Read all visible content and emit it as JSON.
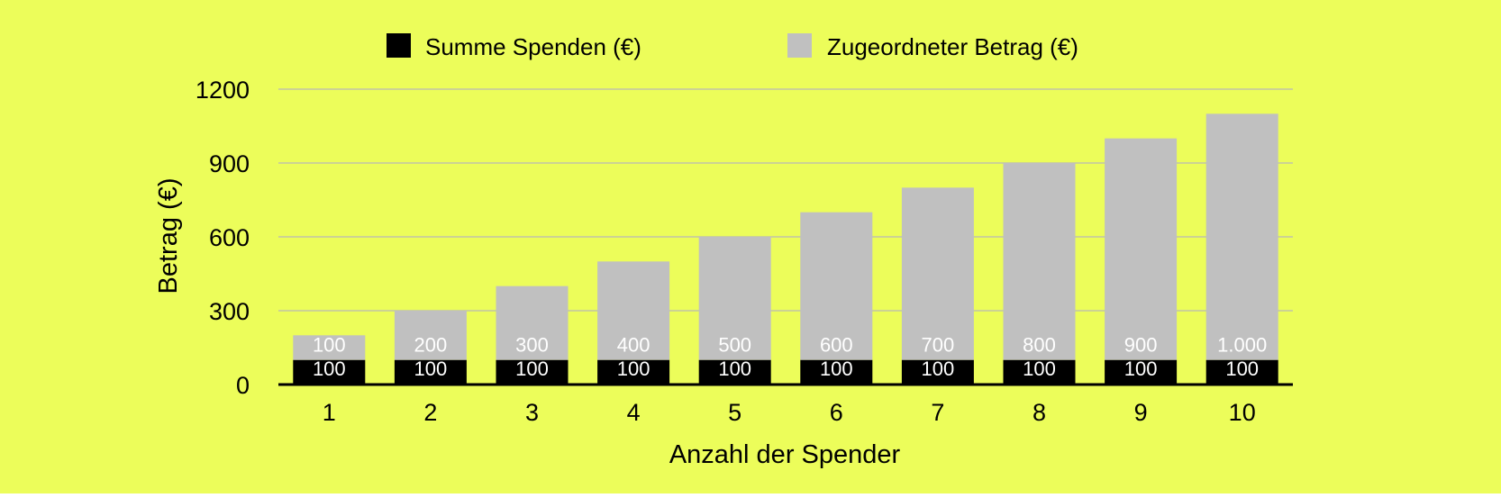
{
  "colors": {
    "background": "#ecfd5a",
    "donations": "#000000",
    "matched": "#c0c0c0",
    "grid": "#b8b8b8",
    "axis": "#000000",
    "bar_label": "#ffffff",
    "text": "#000000"
  },
  "chart_data": {
    "type": "bar",
    "stacked": true,
    "title": "",
    "xlabel": "Anzahl der Spender",
    "ylabel": "Betrag (€)",
    "ylim": [
      0,
      1200
    ],
    "yticks": [
      0,
      300,
      600,
      900,
      1200
    ],
    "ytick_labels": [
      "0",
      "300",
      "600",
      "900",
      "1200"
    ],
    "grid": true,
    "legend_position": "top-center",
    "categories": [
      "1",
      "2",
      "3",
      "4",
      "5",
      "6",
      "7",
      "8",
      "9",
      "10"
    ],
    "series": [
      {
        "name": "Summe Spenden (€)",
        "values": [
          100,
          100,
          100,
          100,
          100,
          100,
          100,
          100,
          100,
          100
        ],
        "labels": [
          "100",
          "100",
          "100",
          "100",
          "100",
          "100",
          "100",
          "100",
          "100",
          "100"
        ]
      },
      {
        "name": "Zugeordneter Betrag (€)",
        "values": [
          100,
          200,
          300,
          400,
          500,
          600,
          700,
          800,
          900,
          1000
        ],
        "labels": [
          "100",
          "200",
          "300",
          "400",
          "500",
          "600",
          "700",
          "800",
          "900",
          "1.000"
        ]
      }
    ]
  }
}
